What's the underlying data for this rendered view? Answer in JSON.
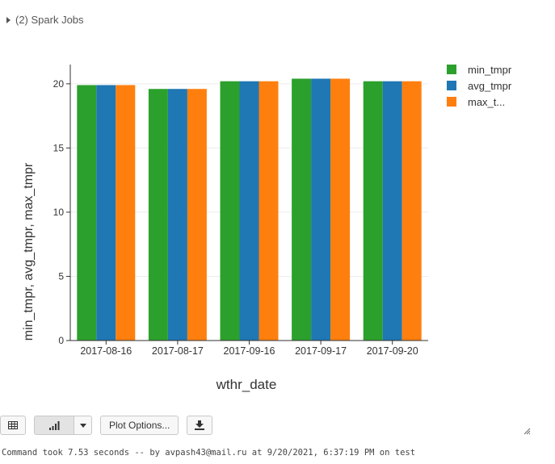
{
  "jobs": {
    "label": "(2) Spark Jobs"
  },
  "toolbar": {
    "plot_options_label": "Plot Options..."
  },
  "status": {
    "text": "Command took 7.53 seconds -- by avpash43@mail.ru at 9/20/2021, 6:37:19 PM on test"
  },
  "colors": {
    "min_tmpr": "#2ca02c",
    "avg_tmpr": "#1f77b4",
    "max_tmpr": "#ff7f0e"
  },
  "chart_data": {
    "type": "bar",
    "categories": [
      "2017-08-16",
      "2017-08-17",
      "2017-09-16",
      "2017-09-17",
      "2017-09-20"
    ],
    "series": [
      {
        "name": "min_tmpr",
        "values": [
          19.9,
          19.6,
          20.2,
          20.4,
          20.2
        ]
      },
      {
        "name": "avg_tmpr",
        "values": [
          19.9,
          19.6,
          20.2,
          20.4,
          20.2
        ]
      },
      {
        "name": "max_t...",
        "values": [
          19.9,
          19.6,
          20.2,
          20.4,
          20.2
        ]
      }
    ],
    "xlabel": "wthr_date",
    "ylabel": "min_tmpr, avg_tmpr, max_tmpr",
    "ylim": [
      0,
      21.5
    ],
    "yticks": [
      0,
      5,
      10,
      15,
      20
    ],
    "grid": true,
    "legend": "top-right"
  }
}
